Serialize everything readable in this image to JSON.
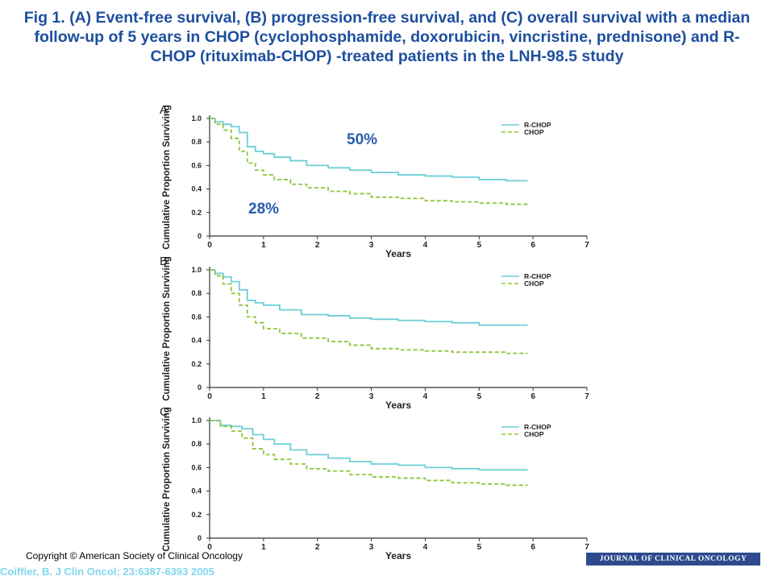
{
  "title": "Fig 1. (A) Event-free survival, (B) progression-free survival, and (C) overall survival with a median follow-up of 5 years in CHOP (cyclophosphamide, doxorubicin, vincristine, prednisone) and R-CHOP (rituximab-CHOP) -treated patients in the LNH-98.5 study",
  "annotations": {
    "rchop_pct": "50%",
    "chop_pct": "28%"
  },
  "footer": {
    "copyright": "Copyright © American Society of Clinical Oncology",
    "citation": "Coiffier, B. J Clin Oncol; 23:6387-6393  2005",
    "journal": "JOURNAL OF CLINICAL ONCOLOGY"
  },
  "colors": {
    "rchop": "#6ccfd6",
    "chop": "#8ec63f",
    "title": "#1d4f9e"
  },
  "chart_data": [
    {
      "type": "line",
      "panel": "A",
      "xlabel": "Years",
      "ylabel": "Cumulative Proportion Surviving",
      "xlim": [
        0,
        7
      ],
      "ylim": [
        0,
        1
      ],
      "xticks": [
        "0",
        "1",
        "2",
        "3",
        "4",
        "5",
        "6",
        "7"
      ],
      "yticks": [
        "0",
        "0.2",
        "0.4",
        "0.6",
        "0.8",
        "1.0"
      ],
      "legend_position": "top-right",
      "series": [
        {
          "name": "R-CHOP",
          "style": "solid",
          "x": [
            0,
            0.1,
            0.25,
            0.4,
            0.55,
            0.7,
            0.85,
            1.0,
            1.2,
            1.5,
            1.8,
            2.2,
            2.6,
            3.0,
            3.5,
            4.0,
            4.5,
            5.0,
            5.5,
            5.9
          ],
          "y": [
            1.0,
            0.97,
            0.95,
            0.93,
            0.88,
            0.76,
            0.72,
            0.7,
            0.67,
            0.64,
            0.6,
            0.58,
            0.56,
            0.54,
            0.52,
            0.51,
            0.5,
            0.48,
            0.47,
            0.47
          ]
        },
        {
          "name": "CHOP",
          "style": "dashed",
          "x": [
            0,
            0.1,
            0.25,
            0.4,
            0.55,
            0.7,
            0.85,
            1.0,
            1.2,
            1.5,
            1.8,
            2.2,
            2.6,
            3.0,
            3.5,
            4.0,
            4.5,
            5.0,
            5.5,
            5.9
          ],
          "y": [
            1.0,
            0.95,
            0.9,
            0.83,
            0.72,
            0.62,
            0.56,
            0.52,
            0.48,
            0.44,
            0.41,
            0.38,
            0.36,
            0.33,
            0.32,
            0.3,
            0.29,
            0.28,
            0.27,
            0.27
          ]
        }
      ]
    },
    {
      "type": "line",
      "panel": "B",
      "xlabel": "Years",
      "ylabel": "Cumulative Proportion Surviving",
      "xlim": [
        0,
        7
      ],
      "ylim": [
        0,
        1
      ],
      "xticks": [
        "0",
        "1",
        "2",
        "3",
        "4",
        "5",
        "6",
        "7"
      ],
      "yticks": [
        "0",
        "0.2",
        "0.4",
        "0.6",
        "0.8",
        "1.0"
      ],
      "legend_position": "top-right",
      "series": [
        {
          "name": "R-CHOP",
          "style": "solid",
          "x": [
            0,
            0.1,
            0.25,
            0.4,
            0.55,
            0.7,
            0.85,
            1.0,
            1.3,
            1.7,
            2.2,
            2.6,
            3.0,
            3.5,
            4.0,
            4.5,
            5.0,
            5.5,
            5.9
          ],
          "y": [
            1.0,
            0.97,
            0.94,
            0.9,
            0.83,
            0.74,
            0.72,
            0.7,
            0.66,
            0.62,
            0.61,
            0.59,
            0.58,
            0.57,
            0.56,
            0.55,
            0.53,
            0.53,
            0.53
          ]
        },
        {
          "name": "CHOP",
          "style": "dashed",
          "x": [
            0,
            0.1,
            0.25,
            0.4,
            0.55,
            0.7,
            0.85,
            1.0,
            1.3,
            1.7,
            2.2,
            2.6,
            3.0,
            3.5,
            4.0,
            4.5,
            5.0,
            5.5,
            5.9
          ],
          "y": [
            1.0,
            0.95,
            0.88,
            0.8,
            0.7,
            0.6,
            0.55,
            0.5,
            0.46,
            0.42,
            0.39,
            0.36,
            0.33,
            0.32,
            0.31,
            0.3,
            0.3,
            0.29,
            0.29
          ]
        }
      ]
    },
    {
      "type": "line",
      "panel": "C",
      "xlabel": "Years",
      "ylabel": "Cumulative Proportion Surviving",
      "xlim": [
        0,
        7
      ],
      "ylim": [
        0,
        1
      ],
      "xticks": [
        "0",
        "1",
        "2",
        "3",
        "4",
        "5",
        "6",
        "7"
      ],
      "yticks": [
        "0",
        "0.2",
        "0.4",
        "0.6",
        "0.8",
        "1.0"
      ],
      "legend_position": "top-right",
      "series": [
        {
          "name": "R-CHOP",
          "style": "solid",
          "x": [
            0,
            0.2,
            0.4,
            0.6,
            0.8,
            1.0,
            1.2,
            1.5,
            1.8,
            2.2,
            2.6,
            3.0,
            3.5,
            4.0,
            4.5,
            5.0,
            5.5,
            5.9
          ],
          "y": [
            1.0,
            0.96,
            0.95,
            0.93,
            0.88,
            0.84,
            0.8,
            0.75,
            0.71,
            0.68,
            0.65,
            0.63,
            0.62,
            0.6,
            0.59,
            0.58,
            0.58,
            0.58
          ]
        },
        {
          "name": "CHOP",
          "style": "dashed",
          "x": [
            0,
            0.2,
            0.4,
            0.6,
            0.8,
            1.0,
            1.2,
            1.5,
            1.8,
            2.2,
            2.6,
            3.0,
            3.5,
            4.0,
            4.5,
            5.0,
            5.5,
            5.9
          ],
          "y": [
            1.0,
            0.95,
            0.91,
            0.85,
            0.76,
            0.71,
            0.67,
            0.63,
            0.59,
            0.57,
            0.54,
            0.52,
            0.51,
            0.49,
            0.47,
            0.46,
            0.45,
            0.45
          ]
        }
      ]
    }
  ]
}
